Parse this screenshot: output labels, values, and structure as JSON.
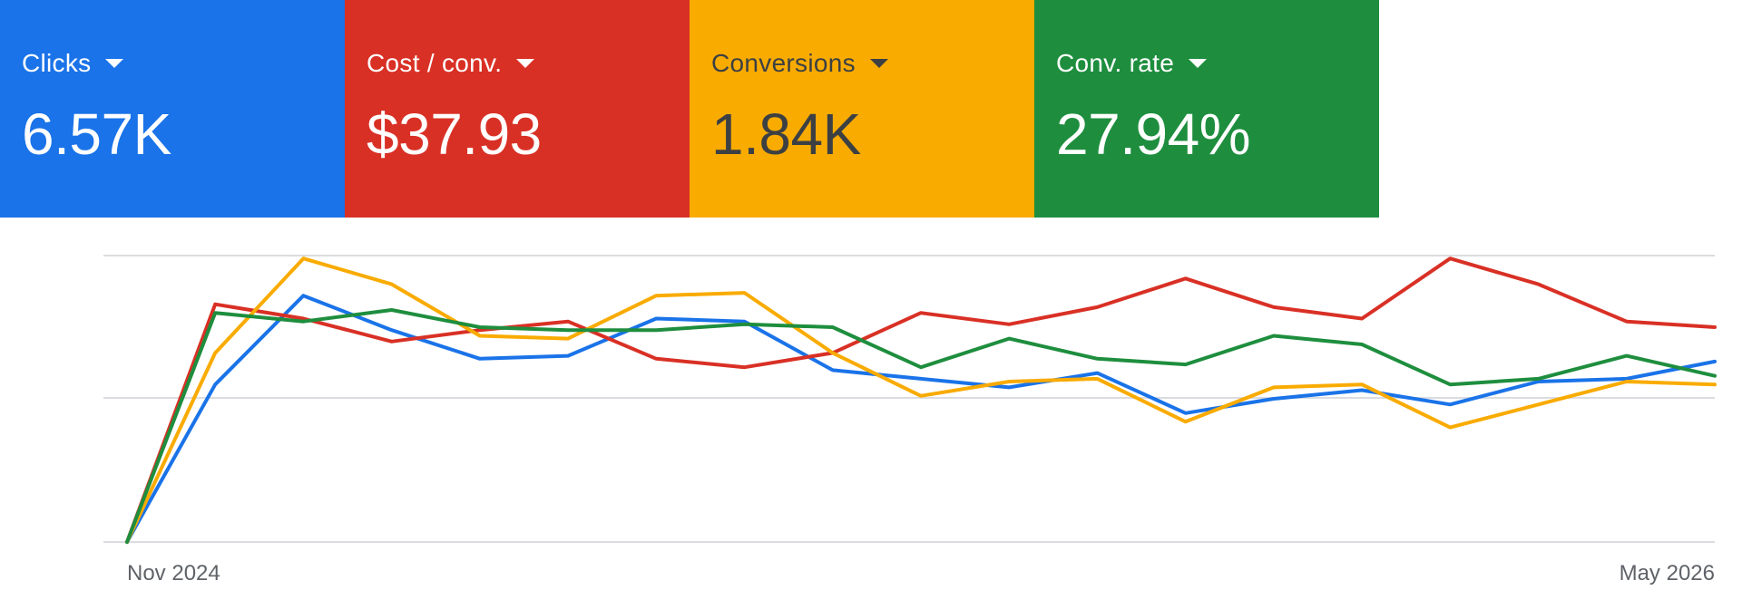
{
  "metrics": [
    {
      "label": "Clicks",
      "value": "6.57K",
      "bg": "#1a73e8",
      "fg": "#ffffff",
      "icon": "chevron-down-icon"
    },
    {
      "label": "Cost / conv.",
      "value": "$37.93",
      "bg": "#d93025",
      "fg": "#ffffff",
      "icon": "chevron-down-icon"
    },
    {
      "label": "Conversions",
      "value": "1.84K",
      "bg": "#f9ab00",
      "fg": "#3c4043",
      "icon": "chevron-down-icon"
    },
    {
      "label": "Conv. rate",
      "value": "27.94%",
      "bg": "#1e8e3e",
      "fg": "#ffffff",
      "icon": "chevron-down-icon"
    }
  ],
  "chart_data": {
    "type": "line",
    "x_tick_labels": [
      "Nov 2024",
      "May 2026"
    ],
    "x_count": 19,
    "ylim": [
      0,
      100
    ],
    "grid": true,
    "series": [
      {
        "color": "#1a73e8",
        "values": [
          0,
          55,
          86,
          74,
          64,
          65,
          78,
          77,
          60,
          57,
          54,
          59,
          45,
          50,
          53,
          48,
          56,
          57,
          63
        ]
      },
      {
        "color": "#d93025",
        "values": [
          0,
          83,
          78,
          70,
          74,
          77,
          64,
          61,
          66,
          80,
          76,
          82,
          92,
          82,
          78,
          99,
          90,
          77,
          75
        ]
      },
      {
        "color": "#f9ab00",
        "values": [
          0,
          66,
          99,
          90,
          72,
          71,
          86,
          87,
          66,
          51,
          56,
          57,
          42,
          54,
          55,
          40,
          48,
          56,
          55
        ]
      },
      {
        "color": "#1e8e3e",
        "values": [
          0,
          80,
          77,
          81,
          75,
          74,
          74,
          76,
          75,
          61,
          71,
          64,
          62,
          72,
          69,
          55,
          57,
          65,
          58
        ]
      }
    ]
  }
}
